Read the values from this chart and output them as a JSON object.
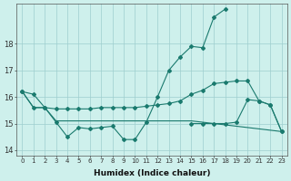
{
  "x": [
    0,
    1,
    2,
    3,
    4,
    5,
    6,
    7,
    8,
    9,
    10,
    11,
    12,
    13,
    14,
    15,
    16,
    17,
    18,
    19,
    20,
    21,
    22,
    23
  ],
  "line1": [
    16.2,
    16.1,
    15.6,
    15.05,
    14.5,
    14.85,
    14.8,
    14.85,
    14.9,
    14.4,
    14.4,
    15.05,
    16.0,
    17.0,
    17.5,
    17.9,
    17.85,
    19.0,
    19.3,
    null,
    null,
    null,
    null,
    null
  ],
  "line2": [
    null,
    null,
    null,
    null,
    null,
    null,
    null,
    null,
    null,
    null,
    null,
    null,
    null,
    null,
    null,
    15.0,
    15.0,
    15.0,
    15.0,
    15.05,
    15.9,
    15.85,
    15.7,
    14.7
  ],
  "line3": [
    16.2,
    15.6,
    15.6,
    15.55,
    15.55,
    15.55,
    15.55,
    15.6,
    15.6,
    15.6,
    15.6,
    15.65,
    15.7,
    15.75,
    15.85,
    16.1,
    16.25,
    16.5,
    16.55,
    16.6,
    16.6,
    15.85,
    15.7,
    14.7
  ],
  "line4": [
    16.2,
    15.6,
    15.6,
    15.1,
    15.1,
    15.1,
    15.1,
    15.1,
    15.1,
    15.1,
    15.1,
    15.1,
    15.1,
    15.1,
    15.1,
    15.1,
    15.05,
    15.0,
    14.95,
    14.9,
    14.85,
    14.8,
    14.75,
    14.7
  ],
  "color": "#1a7a6e",
  "bg_color": "#cef0ec",
  "grid_color": "#9ecece",
  "xlabel": "Humidex (Indice chaleur)",
  "ylabel_ticks": [
    14,
    15,
    16,
    17,
    18
  ],
  "xlim": [
    -0.5,
    23.5
  ],
  "ylim": [
    13.8,
    19.5
  ],
  "xticks": [
    0,
    1,
    2,
    3,
    4,
    5,
    6,
    7,
    8,
    9,
    10,
    11,
    12,
    13,
    14,
    15,
    16,
    17,
    18,
    19,
    20,
    21,
    22,
    23
  ]
}
